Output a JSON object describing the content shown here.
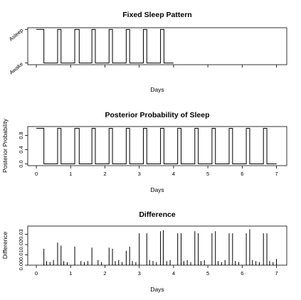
{
  "chart_data": [
    {
      "type": "line",
      "title": "Fixed Sleep Pattern",
      "xlabel": "Days",
      "ylabel": "",
      "xlim": [
        -0.25,
        7.3
      ],
      "xticks": [
        0,
        1,
        2,
        3,
        4,
        5,
        6,
        7
      ],
      "x_tick_labels_shown": false,
      "ylim": [
        -0.05,
        1.05
      ],
      "y_ticks": [
        {
          "value": 0,
          "label": "Awake"
        },
        {
          "value": 1,
          "label": "Asleep"
        }
      ],
      "series": [
        {
          "x": [
            0,
            0.22,
            0.22,
            0.62,
            0.62,
            0.72,
            0.72,
            1.12,
            1.12,
            1.25,
            1.25,
            1.62,
            1.62,
            1.72,
            1.72,
            2.12,
            2.12,
            2.22,
            2.22,
            2.62,
            2.62,
            2.72,
            2.72,
            3.12,
            3.12,
            3.22,
            3.22,
            3.62,
            3.62,
            3.72,
            3.72,
            4.0
          ],
          "y": [
            1,
            1,
            0,
            0,
            1,
            1,
            0,
            0,
            1,
            1,
            0,
            0,
            1,
            1,
            0,
            0,
            1,
            1,
            0,
            0,
            1,
            1,
            0,
            0,
            1,
            1,
            0,
            0,
            1,
            1,
            0,
            0
          ]
        }
      ]
    },
    {
      "type": "line",
      "title": "Posterior Probability of Sleep",
      "xlabel": "Days",
      "ylabel": "Posterior Probability",
      "xlim": [
        -0.25,
        7.3
      ],
      "xticks": [
        0,
        1,
        2,
        3,
        4,
        5,
        6,
        7
      ],
      "xtick_labels": [
        "0",
        "1",
        "2",
        "3",
        "4",
        "5",
        "6",
        "7"
      ],
      "ylim": [
        -0.05,
        1.05
      ],
      "yticks": [
        0.0,
        0.4,
        0.8
      ],
      "ytick_labels": [
        "0.0",
        "0.4",
        "0.8"
      ],
      "series": [
        {
          "x": [
            0,
            0.22,
            0.22,
            0.62,
            0.62,
            0.72,
            0.72,
            1.12,
            1.12,
            1.25,
            1.25,
            1.62,
            1.62,
            1.72,
            1.72,
            2.12,
            2.12,
            2.22,
            2.22,
            2.62,
            2.62,
            2.72,
            2.72,
            3.12,
            3.12,
            3.22,
            3.22,
            3.62,
            3.62,
            3.72,
            3.72,
            4.12,
            4.12,
            4.22,
            4.22,
            4.62,
            4.62,
            4.72,
            4.72,
            5.12,
            5.12,
            5.22,
            5.22,
            5.62,
            5.62,
            5.72,
            5.72,
            6.12,
            6.12,
            6.22,
            6.22,
            6.62,
            6.62,
            6.72,
            6.72,
            7.0
          ],
          "y": [
            1,
            1,
            0,
            0,
            1,
            1,
            0,
            0,
            1,
            1,
            0,
            0,
            1,
            1,
            0,
            0,
            1,
            1,
            0,
            0,
            1,
            1,
            0,
            0,
            1,
            1,
            0,
            0,
            1,
            1,
            0,
            0,
            1,
            1,
            0,
            0,
            1,
            1,
            0,
            0,
            1,
            1,
            0,
            0,
            1,
            1,
            0,
            0,
            1,
            1,
            0,
            0,
            1,
            1,
            0,
            0
          ]
        }
      ]
    },
    {
      "type": "bar",
      "title": "Difference",
      "xlabel": "Days",
      "ylabel": "Difference",
      "xlim": [
        -0.25,
        7.3
      ],
      "xticks": [
        0,
        1,
        2,
        3,
        4,
        5,
        6,
        7
      ],
      "xtick_labels": [
        "0",
        "1",
        "2",
        "3",
        "4",
        "5",
        "6",
        "7"
      ],
      "ylim": [
        0,
        0.038
      ],
      "yticks": [
        0.0,
        0.01,
        0.02,
        0.03
      ],
      "ytick_labels": [
        "0.00",
        "0.01",
        "0.02",
        "0.03"
      ],
      "peaks": {
        "x": [
          0.22,
          0.62,
          0.72,
          1.12,
          1.62,
          2.12,
          2.22,
          2.62,
          2.72,
          3.0,
          3.22,
          3.62,
          3.7,
          4.12,
          4.22,
          4.62,
          4.72,
          5.12,
          5.22,
          5.62,
          5.72,
          6.12,
          6.22,
          6.62,
          6.72,
          7.0
        ],
        "y": [
          0.016,
          0.022,
          0.019,
          0.018,
          0.017,
          0.017,
          0.016,
          0.014,
          0.018,
          0.031,
          0.031,
          0.033,
          0.034,
          0.031,
          0.031,
          0.033,
          0.031,
          0.031,
          0.033,
          0.031,
          0.031,
          0.031,
          0.035,
          0.031,
          0.031,
          0.006
        ]
      },
      "noise": {
        "x": [
          0.3,
          0.4,
          0.5,
          0.8,
          0.9,
          1.3,
          1.4,
          1.5,
          1.8,
          1.9,
          2.3,
          2.4,
          2.5,
          2.8,
          2.9,
          3.3,
          3.4,
          3.5,
          3.8,
          3.9,
          4.3,
          4.4,
          4.5,
          4.8,
          4.9,
          5.3,
          5.4,
          5.5,
          5.8,
          5.9,
          6.3,
          6.4,
          6.5,
          6.8,
          6.9
        ],
        "y": [
          0.004,
          0.003,
          0.005,
          0.004,
          0.003,
          0.004,
          0.003,
          0.004,
          0.005,
          0.003,
          0.004,
          0.005,
          0.003,
          0.004,
          0.003,
          0.005,
          0.004,
          0.003,
          0.004,
          0.005,
          0.004,
          0.005,
          0.003,
          0.004,
          0.005,
          0.004,
          0.003,
          0.005,
          0.004,
          0.003,
          0.005,
          0.004,
          0.003,
          0.004,
          0.003
        ]
      }
    }
  ]
}
